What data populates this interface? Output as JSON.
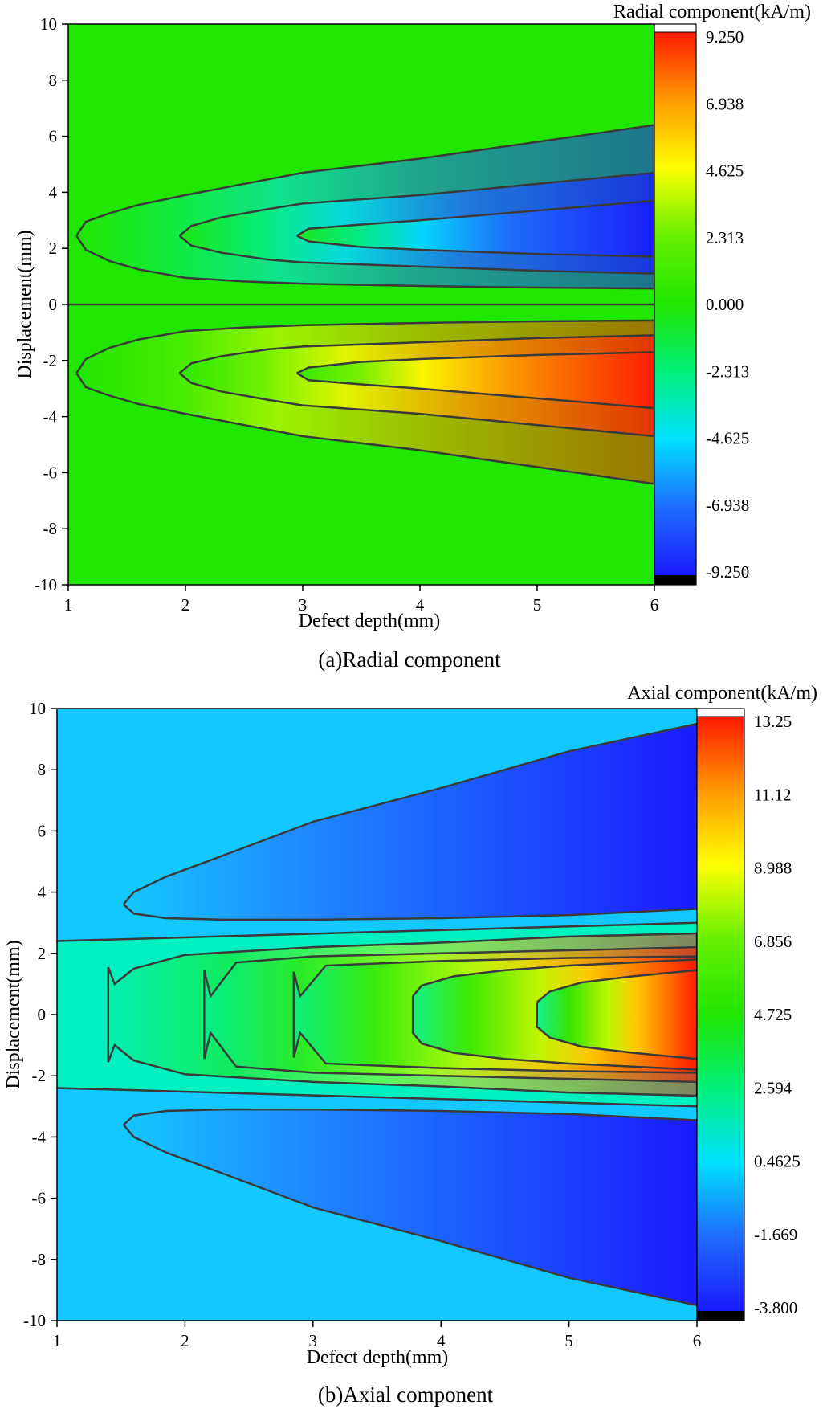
{
  "chart_data": [
    {
      "type": "heatmap",
      "subtype": "filled-contour",
      "caption": "(a)Radial component",
      "xlabel": "Defect depth(mm)",
      "ylabel": "Displacement(mm)",
      "colorbar_title": "Radial component(kA/m)",
      "xlim": [
        1,
        6
      ],
      "ylim": [
        -10,
        10
      ],
      "xticks": [
        "1",
        "2",
        "3",
        "4",
        "5",
        "6"
      ],
      "yticks": [
        "-10",
        "-8",
        "-6",
        "-4",
        "-2",
        "0",
        "2",
        "4",
        "6",
        "8",
        "10"
      ],
      "colorbar_ticks": [
        "9.250",
        "6.938",
        "4.625",
        "2.313",
        "0.000",
        "-2.313",
        "-4.625",
        "-6.938",
        "-9.250"
      ],
      "vmin": -9.25,
      "vmax": 9.25,
      "colormap": [
        "#1a1aff",
        "#1f6cff",
        "#00e0ff",
        "#00f07a",
        "#21e600",
        "#66f000",
        "#ffff00",
        "#ff9900",
        "#ff1a00"
      ],
      "peak_displacement_mm": 2.5,
      "contour_lines": {
        "note": "x = defect depth (mm), y = displacement (mm); mirrored about y=0 with opposite sign",
        "upper": [
          {
            "level": -2.313,
            "x": [
              1.07,
              1.15,
              1.35,
              1.6,
              2.0,
              2.5,
              3.0,
              4.0,
              5.0,
              6.0
            ],
            "y": [
              2.45,
              1.95,
              1.55,
              1.25,
              0.95,
              0.82,
              0.74,
              0.66,
              0.6,
              0.57
            ],
            "y_top": [
              2.45,
              2.95,
              3.25,
              3.55,
              3.9,
              4.3,
              4.7,
              5.2,
              5.8,
              6.4
            ]
          },
          {
            "level": -4.625,
            "x": [
              1.95,
              2.05,
              2.3,
              2.7,
              3.0,
              4.0,
              5.0,
              6.0
            ],
            "y": [
              2.45,
              2.1,
              1.85,
              1.6,
              1.5,
              1.35,
              1.2,
              1.1
            ],
            "y_top": [
              2.45,
              2.8,
              3.1,
              3.4,
              3.6,
              3.9,
              4.3,
              4.7
            ]
          },
          {
            "level": -6.938,
            "x": [
              2.95,
              3.05,
              3.5,
              4.0,
              5.0,
              6.0
            ],
            "y": [
              2.45,
              2.25,
              2.05,
              1.95,
              1.8,
              1.7
            ],
            "y_top": [
              2.45,
              2.7,
              2.85,
              3.0,
              3.35,
              3.7
            ]
          }
        ]
      }
    },
    {
      "type": "heatmap",
      "subtype": "filled-contour",
      "caption": "(b)Axial component",
      "xlabel": "Defect depth(mm)",
      "ylabel": "Displacement(mm)",
      "colorbar_title": "Axial component(kA/m)",
      "xlim": [
        1,
        6
      ],
      "ylim": [
        -10,
        10
      ],
      "xticks": [
        "1",
        "2",
        "3",
        "4",
        "5",
        "6"
      ],
      "yticks": [
        "-10",
        "-8",
        "-6",
        "-4",
        "-2",
        "0",
        "2",
        "4",
        "6",
        "8",
        "10"
      ],
      "colorbar_ticks": [
        "13.25",
        "11.12",
        "8.988",
        "6.856",
        "4.725",
        "2.594",
        "0.4625",
        "-1.669",
        "-3.800"
      ],
      "vmin": -3.8,
      "vmax": 13.25,
      "colormap": [
        "#1a1aff",
        "#1f6cff",
        "#00e0ff",
        "#00f07a",
        "#21e600",
        "#66f000",
        "#ffff00",
        "#ff9900",
        "#ff1a00"
      ],
      "contour_lines": {
        "note": "x = defect depth (mm), y = displacement (mm); symmetric about y=0",
        "outer_negative": [
          {
            "level": -1.669,
            "x": [
              1.52,
              1.6,
              1.85,
              2.3,
              3.0,
              4.0,
              5.0,
              6.0
            ],
            "y_outer": [
              3.6,
              4.0,
              4.5,
              5.2,
              6.3,
              7.4,
              8.6,
              9.5
            ],
            "y_inner": [
              3.6,
              3.3,
              3.15,
              3.1,
              3.1,
              3.15,
              3.25,
              3.45
            ]
          }
        ],
        "central_positive": [
          {
            "level": 4.725,
            "x": [
              1.4,
              1.45,
              1.6,
              2.0,
              3.0,
              4.0,
              5.0,
              6.0
            ],
            "y": [
              1.55,
              1.0,
              1.5,
              1.95,
              2.2,
              2.35,
              2.55,
              2.65
            ]
          },
          {
            "level": 6.856,
            "x": [
              2.15,
              2.2,
              2.4,
              3.0,
              4.0,
              5.0,
              6.0
            ],
            "y": [
              1.45,
              0.6,
              1.7,
              1.9,
              2.0,
              2.1,
              2.2
            ]
          },
          {
            "level": 8.988,
            "x": [
              2.85,
              2.9,
              3.1,
              4.0,
              5.0,
              6.0
            ],
            "y": [
              1.4,
              0.6,
              1.6,
              1.75,
              1.85,
              1.9
            ]
          },
          {
            "level": 11.12,
            "x": [
              3.78,
              3.85,
              4.1,
              4.5,
              5.0,
              6.0
            ],
            "y": [
              0.6,
              0.95,
              1.25,
              1.45,
              1.6,
              1.8
            ]
          },
          {
            "level": 13.25,
            "x": [
              4.75,
              4.85,
              5.1,
              5.5,
              6.0
            ],
            "y": [
              0.4,
              0.75,
              1.05,
              1.25,
              1.45
            ]
          }
        ],
        "sign_change_line": {
          "x": [
            1.0,
            6.0
          ],
          "y": [
            2.4,
            3.0
          ]
        }
      }
    }
  ]
}
